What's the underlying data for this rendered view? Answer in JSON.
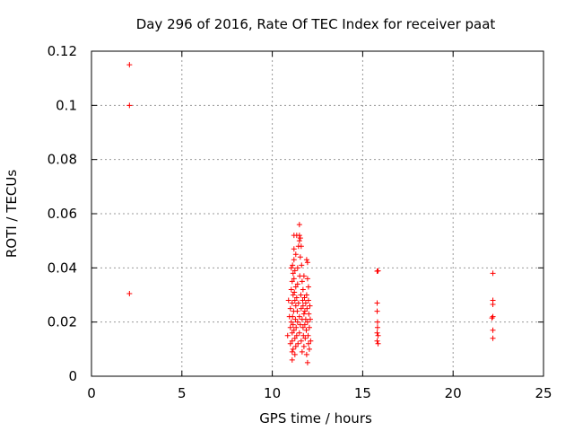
{
  "chart_data": {
    "type": "scatter",
    "title": "Day 296 of 2016, Rate Of TEC Index for receiver paat",
    "xlabel": "GPS time / hours",
    "ylabel": "ROTI / TECUs",
    "xlim": [
      0,
      25
    ],
    "ylim": [
      0,
      0.12
    ],
    "xticks": [
      0,
      5,
      10,
      15,
      20,
      25
    ],
    "yticks": [
      0,
      0.02,
      0.04,
      0.06,
      0.08,
      0.1,
      0.12
    ],
    "xtick_labels": [
      "0",
      "5",
      "10",
      "15",
      "20",
      "25"
    ],
    "ytick_labels": [
      "0",
      "0.02",
      "0.04",
      "0.06",
      "0.08",
      "0.1",
      "0.12"
    ],
    "grid": true,
    "marker": "+",
    "color": "#ff0000",
    "series": [
      {
        "name": "ROTI",
        "points": [
          [
            2.1,
            0.115
          ],
          [
            2.1,
            0.1
          ],
          [
            2.1,
            0.0305
          ],
          [
            10.85,
            0.015
          ],
          [
            10.9,
            0.028
          ],
          [
            10.95,
            0.022
          ],
          [
            11.0,
            0.018
          ],
          [
            11.0,
            0.025
          ],
          [
            11.0,
            0.012
          ],
          [
            11.05,
            0.032
          ],
          [
            11.05,
            0.04
          ],
          [
            11.05,
            0.02
          ],
          [
            11.1,
            0.006
          ],
          [
            11.1,
            0.009
          ],
          [
            11.1,
            0.013
          ],
          [
            11.1,
            0.016
          ],
          [
            11.1,
            0.027
          ],
          [
            11.1,
            0.035
          ],
          [
            11.12,
            0.041
          ],
          [
            11.12,
            0.022
          ],
          [
            11.15,
            0.019
          ],
          [
            11.15,
            0.03
          ],
          [
            11.15,
            0.038
          ],
          [
            11.15,
            0.01
          ],
          [
            11.18,
            0.024
          ],
          [
            11.2,
            0.052
          ],
          [
            11.2,
            0.047
          ],
          [
            11.2,
            0.043
          ],
          [
            11.2,
            0.036
          ],
          [
            11.2,
            0.017
          ],
          [
            11.22,
            0.031
          ],
          [
            11.25,
            0.028
          ],
          [
            11.25,
            0.014
          ],
          [
            11.25,
            0.008
          ],
          [
            11.25,
            0.039
          ],
          [
            11.28,
            0.021
          ],
          [
            11.3,
            0.045
          ],
          [
            11.3,
            0.026
          ],
          [
            11.3,
            0.033
          ],
          [
            11.3,
            0.011
          ],
          [
            11.32,
            0.018
          ],
          [
            11.35,
            0.052
          ],
          [
            11.35,
            0.029
          ],
          [
            11.35,
            0.015
          ],
          [
            11.38,
            0.024
          ],
          [
            11.4,
            0.04
          ],
          [
            11.4,
            0.02
          ],
          [
            11.4,
            0.034
          ],
          [
            11.42,
            0.012
          ],
          [
            11.45,
            0.027
          ],
          [
            11.45,
            0.048
          ],
          [
            11.5,
            0.056
          ],
          [
            11.5,
            0.052
          ],
          [
            11.5,
            0.05
          ],
          [
            11.5,
            0.022
          ],
          [
            11.5,
            0.016
          ],
          [
            11.52,
            0.037
          ],
          [
            11.55,
            0.051
          ],
          [
            11.55,
            0.044
          ],
          [
            11.55,
            0.019
          ],
          [
            11.58,
            0.03
          ],
          [
            11.6,
            0.048
          ],
          [
            11.6,
            0.025
          ],
          [
            11.6,
            0.013
          ],
          [
            11.62,
            0.041
          ],
          [
            11.65,
            0.035
          ],
          [
            11.65,
            0.021
          ],
          [
            11.65,
            0.009
          ],
          [
            11.68,
            0.028
          ],
          [
            11.7,
            0.018
          ],
          [
            11.7,
            0.032
          ],
          [
            11.7,
            0.026
          ],
          [
            11.72,
            0.015
          ],
          [
            11.75,
            0.023
          ],
          [
            11.75,
            0.037
          ],
          [
            11.75,
            0.011
          ],
          [
            11.78,
            0.029
          ],
          [
            11.8,
            0.019
          ],
          [
            11.8,
            0.024
          ],
          [
            11.82,
            0.014
          ],
          [
            11.85,
            0.027
          ],
          [
            11.85,
            0.021
          ],
          [
            11.88,
            0.017
          ],
          [
            11.9,
            0.043
          ],
          [
            11.9,
            0.03
          ],
          [
            11.9,
            0.008
          ],
          [
            11.92,
            0.025
          ],
          [
            11.95,
            0.042
          ],
          [
            11.95,
            0.036
          ],
          [
            11.95,
            0.005
          ],
          [
            11.95,
            0.02
          ],
          [
            11.98,
            0.015
          ],
          [
            12.0,
            0.033
          ],
          [
            12.0,
            0.028
          ],
          [
            12.0,
            0.012
          ],
          [
            12.02,
            0.023
          ],
          [
            12.05,
            0.018
          ],
          [
            12.05,
            0.01
          ],
          [
            12.08,
            0.026
          ],
          [
            12.1,
            0.021
          ],
          [
            12.12,
            0.013
          ],
          [
            15.8,
            0.0388
          ],
          [
            15.85,
            0.0389
          ],
          [
            15.8,
            0.027
          ],
          [
            15.8,
            0.024
          ],
          [
            15.82,
            0.02
          ],
          [
            15.82,
            0.018
          ],
          [
            15.8,
            0.016
          ],
          [
            15.85,
            0.015
          ],
          [
            15.8,
            0.013
          ],
          [
            15.85,
            0.012
          ],
          [
            22.2,
            0.038
          ],
          [
            22.2,
            0.028
          ],
          [
            22.2,
            0.0265
          ],
          [
            22.2,
            0.022
          ],
          [
            22.15,
            0.0215
          ],
          [
            22.2,
            0.017
          ],
          [
            22.2,
            0.014
          ]
        ]
      }
    ]
  }
}
